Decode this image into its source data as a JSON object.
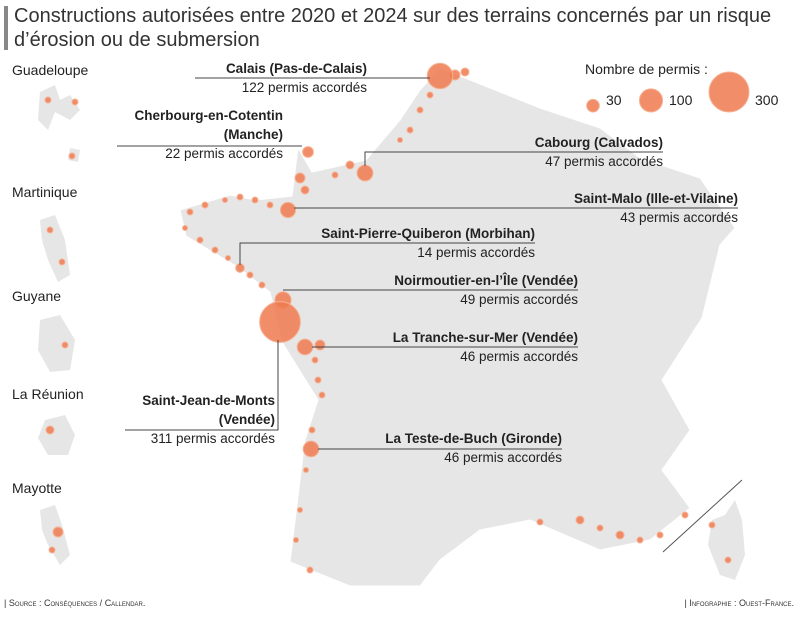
{
  "title": "Constructions autorisées entre 2020 et 2024 sur des terrains concernés par un risque d’érosion ou de submersion",
  "legend": {
    "title": "Nombre de permis :",
    "items": [
      30,
      100,
      300
    ]
  },
  "territories": [
    "Guadeloupe",
    "Martinique",
    "Guyane",
    "La Réunion",
    "Mayotte"
  ],
  "callouts": [
    {
      "name": "Calais (Pas-de-Calais)",
      "permits": 122,
      "label": "122 permis accordés"
    },
    {
      "name": "Cherbourg-en-Cotentin (Manche)",
      "permits": 22,
      "label": "22 permis accordés"
    },
    {
      "name": "Cabourg (Calvados)",
      "permits": 47,
      "label": "47 permis accordés"
    },
    {
      "name": "Saint-Malo (Ille-et-Vilaine)",
      "permits": 43,
      "label": "43 permis accordés"
    },
    {
      "name": "Saint-Pierre-Quiberon (Morbihan)",
      "permits": 14,
      "label": "14 permis accordés"
    },
    {
      "name": "Noirmoutier-en-l’Île (Vendée)",
      "permits": 49,
      "label": "49 permis accordés"
    },
    {
      "name": "La Tranche-sur-Mer (Vendée)",
      "permits": 46,
      "label": "46 permis accordés"
    },
    {
      "name": "Saint-Jean-de-Monts (Vendée)",
      "permits": 311,
      "label": "311 permis accordés"
    },
    {
      "name": "La Teste-de-Buch (Gironde)",
      "permits": 46,
      "label": "46 permis accordés"
    }
  ],
  "source": "| Source : Conséquences / Callendar.",
  "credit": "| Infographie : Ouest-France."
}
